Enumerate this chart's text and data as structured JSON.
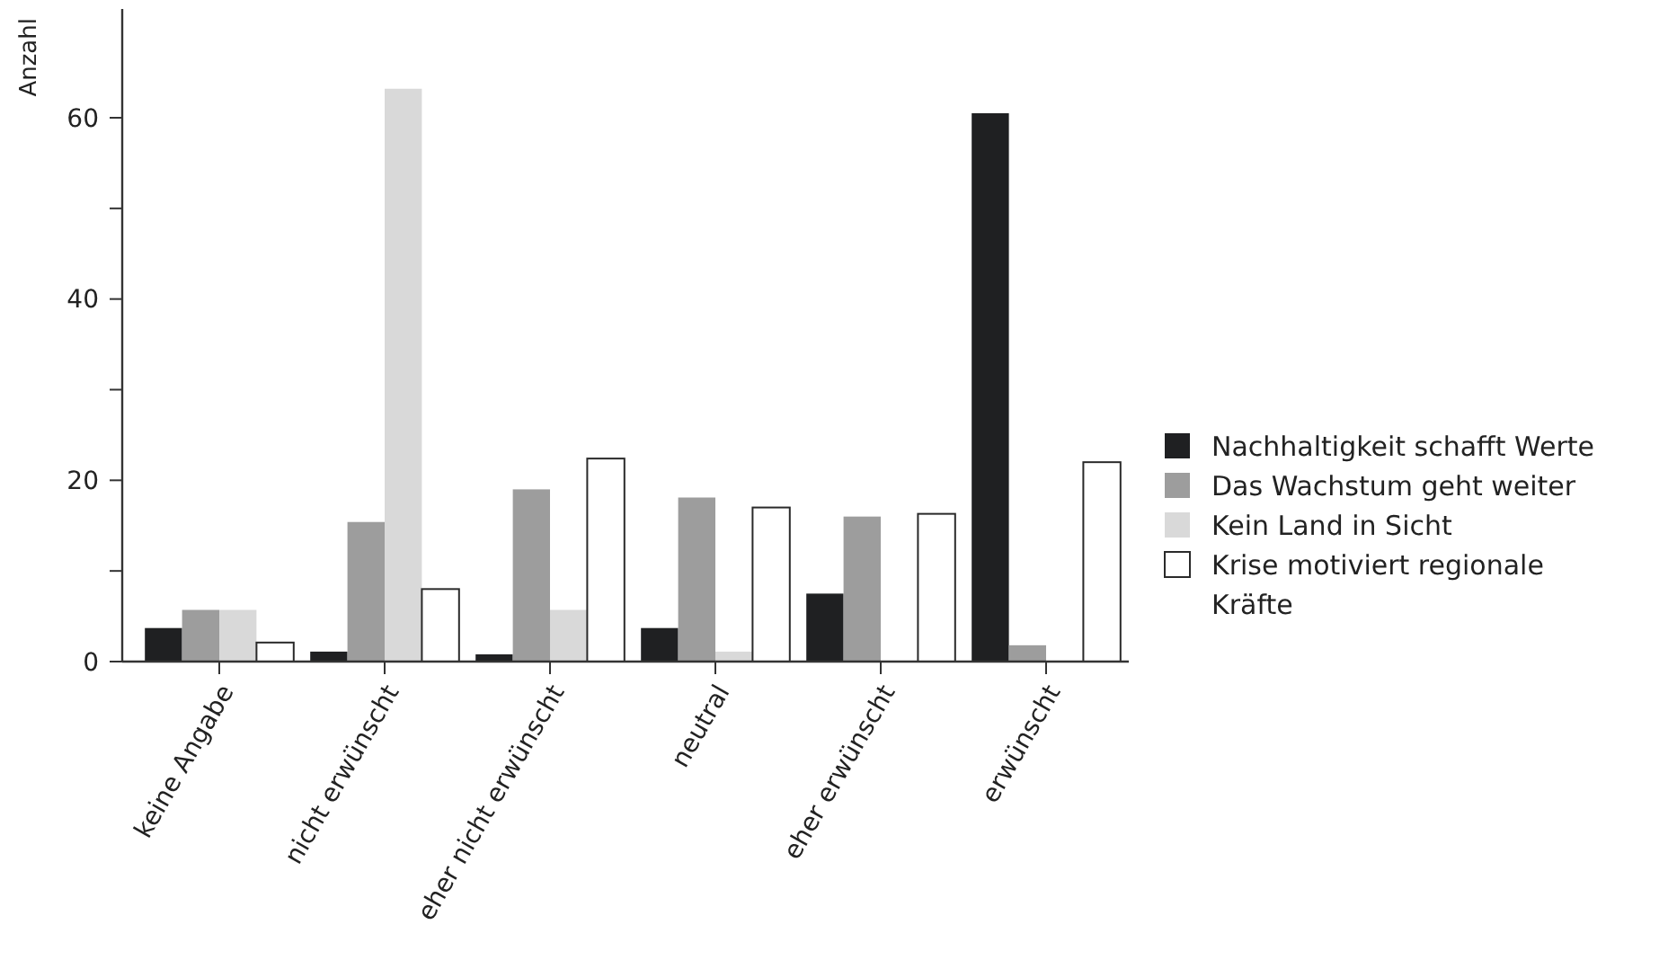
{
  "chart_data": {
    "type": "bar",
    "ylabel": "Anzahl",
    "categories": [
      "keine Angabe",
      "nicht erwünscht",
      "eher nicht erwünscht",
      "neutral",
      "eher erwünscht",
      "erwünscht"
    ],
    "series": [
      {
        "name": "Nachhaltigkeit schafft Werte",
        "color": "#1f2022",
        "values": [
          3.7,
          1.1,
          0.8,
          3.7,
          7.5,
          60.5
        ]
      },
      {
        "name": "Das Wachstum geht weiter",
        "color": "#9d9d9d",
        "values": [
          5.7,
          15.4,
          19.0,
          18.1,
          16.0,
          1.8
        ]
      },
      {
        "name": "Kein Land in Sicht",
        "color": "#d9d9d9",
        "values": [
          5.7,
          63.2,
          5.7,
          1.1,
          0,
          0
        ]
      },
      {
        "name": "Krise motiviert regionale Kräfte",
        "color": "#ffffff",
        "values": [
          2.1,
          8.0,
          22.4,
          17.0,
          16.3,
          22.0
        ]
      }
    ],
    "ylim": [
      0,
      72
    ],
    "yticks": [
      0,
      {
        "value": 10,
        "label": null
      },
      20,
      {
        "value": 30,
        "label": null
      },
      40,
      {
        "value": 50,
        "label": null
      },
      60
    ],
    "grid": false,
    "legend": "right"
  }
}
